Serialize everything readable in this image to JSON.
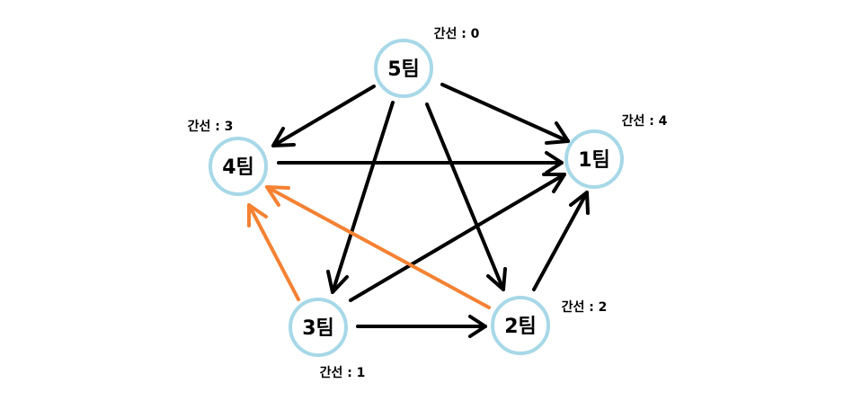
{
  "nodes": [
    {
      "id": "team-5",
      "label": "5팀",
      "edge_label": "간선 : 0"
    },
    {
      "id": "team-4",
      "label": "4팀",
      "edge_label": "간선 : 3"
    },
    {
      "id": "team-1",
      "label": "1팀",
      "edge_label": "간선 : 4"
    },
    {
      "id": "team-3",
      "label": "3팀",
      "edge_label": "간선 : 1"
    },
    {
      "id": "team-2",
      "label": "2팀",
      "edge_label": "간선 : 2"
    }
  ],
  "edges": [
    {
      "from": "team-5",
      "to": "team-4",
      "color": "#000000"
    },
    {
      "from": "team-5",
      "to": "team-1",
      "color": "#000000"
    },
    {
      "from": "team-5",
      "to": "team-3",
      "color": "#000000"
    },
    {
      "from": "team-5",
      "to": "team-2",
      "color": "#000000"
    },
    {
      "from": "team-4",
      "to": "team-1",
      "color": "#000000"
    },
    {
      "from": "team-3",
      "to": "team-1",
      "color": "#000000"
    },
    {
      "from": "team-2",
      "to": "team-1",
      "color": "#000000"
    },
    {
      "from": "team-3",
      "to": "team-2",
      "color": "#000000"
    },
    {
      "from": "team-2",
      "to": "team-4",
      "color": "#f58132"
    },
    {
      "from": "team-3",
      "to": "team-4",
      "color": "#f58132"
    }
  ],
  "colors": {
    "node_stroke": "#a7d8e8",
    "edge_default": "#000000",
    "edge_highlight": "#f58132"
  }
}
